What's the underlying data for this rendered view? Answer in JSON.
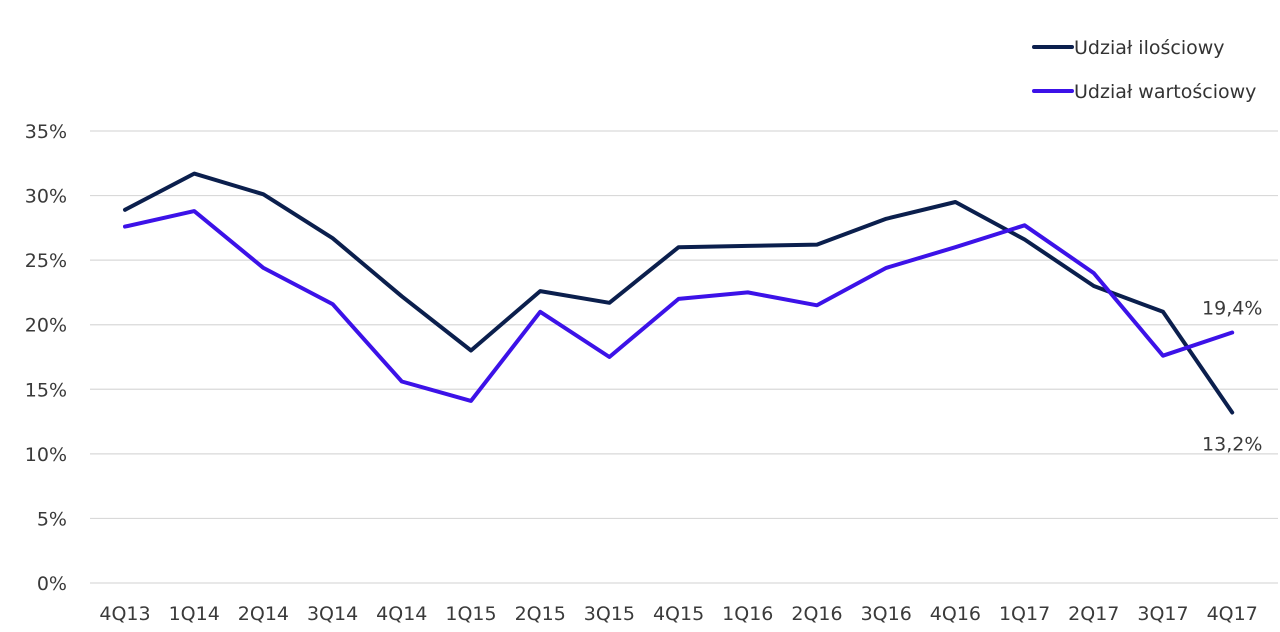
{
  "chart_data": {
    "type": "line",
    "title": "",
    "xlabel": "",
    "ylabel": "",
    "categories": [
      "4Q13",
      "1Q14",
      "2Q14",
      "3Q14",
      "4Q14",
      "1Q15",
      "2Q15",
      "3Q15",
      "4Q15",
      "1Q16",
      "2Q16",
      "3Q16",
      "4Q16",
      "1Q17",
      "2Q17",
      "3Q17",
      "4Q17"
    ],
    "ylim": [
      0,
      35
    ],
    "yticks": [
      0,
      5,
      10,
      15,
      20,
      25,
      30,
      35
    ],
    "ytick_labels": [
      "0%",
      "5%",
      "10%",
      "15%",
      "20%",
      "25%",
      "30%",
      "35%"
    ],
    "grid": true,
    "legend_position": "top-right",
    "series": [
      {
        "name": "Udział ilościowy",
        "color": "#0b1f4d",
        "values": [
          28.9,
          31.7,
          30.1,
          26.7,
          22.2,
          18.0,
          22.6,
          21.7,
          26.0,
          26.1,
          26.2,
          28.2,
          29.5,
          26.6,
          23.0,
          21.0,
          13.2
        ]
      },
      {
        "name": "Udział wartościowy",
        "color": "#3c12e8",
        "values": [
          27.6,
          28.8,
          24.4,
          21.6,
          15.6,
          14.1,
          21.0,
          17.5,
          22.0,
          22.5,
          21.5,
          24.4,
          26.0,
          27.7,
          24.0,
          17.6,
          19.4
        ]
      }
    ],
    "annotations": [
      {
        "series": 1,
        "index": 16,
        "text": "19,4%"
      },
      {
        "series": 0,
        "index": 16,
        "text": "13,2%"
      }
    ]
  }
}
